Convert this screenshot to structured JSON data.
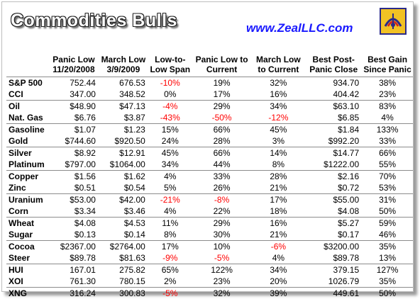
{
  "header": {
    "title": "Commodities Bulls",
    "site": "www.ZealLLC.com"
  },
  "colors": {
    "negative": "#ff0000",
    "site": "#1a1aff",
    "logo_bg": "#f2c224"
  },
  "columns": [
    "Panic Low 11/20/2008",
    "March Low 3/9/2009",
    "Low-to-Low Span",
    "Panic Low to Current",
    "March Low to Current",
    "Best Post-Panic Close",
    "Best Gain Since Panic"
  ],
  "rows": [
    {
      "name": "S&P 500",
      "panic": "752.44",
      "march": "676.53",
      "span": "-10%",
      "p2c": "19%",
      "m2c": "32%",
      "best": "934.70",
      "gain": "38%"
    },
    {
      "name": "CCI",
      "panic": "347.00",
      "march": "348.52",
      "span": "0%",
      "p2c": "17%",
      "m2c": "16%",
      "best": "404.42",
      "gain": "23%"
    },
    {
      "name": "Oil",
      "panic": "$48.90",
      "march": "$47.13",
      "span": "-4%",
      "p2c": "29%",
      "m2c": "34%",
      "best": "$63.10",
      "gain": "83%"
    },
    {
      "name": "Nat. Gas",
      "panic": "$6.76",
      "march": "$3.87",
      "span": "-43%",
      "p2c": "-50%",
      "m2c": "-12%",
      "best": "$6.85",
      "gain": "4%"
    },
    {
      "name": "Gasoline",
      "panic": "$1.07",
      "march": "$1.23",
      "span": "15%",
      "p2c": "66%",
      "m2c": "45%",
      "best": "$1.84",
      "gain": "133%"
    },
    {
      "name": "Gold",
      "panic": "$744.60",
      "march": "$920.50",
      "span": "24%",
      "p2c": "28%",
      "m2c": "3%",
      "best": "$992.20",
      "gain": "33%"
    },
    {
      "name": "Silver",
      "panic": "$8.92",
      "march": "$12.91",
      "span": "45%",
      "p2c": "66%",
      "m2c": "14%",
      "best": "$14.77",
      "gain": "66%"
    },
    {
      "name": "Platinum",
      "panic": "$797.00",
      "march": "$1064.00",
      "span": "34%",
      "p2c": "44%",
      "m2c": "8%",
      "best": "$1222.00",
      "gain": "55%"
    },
    {
      "name": "Copper",
      "panic": "$1.56",
      "march": "$1.62",
      "span": "4%",
      "p2c": "33%",
      "m2c": "28%",
      "best": "$2.16",
      "gain": "70%"
    },
    {
      "name": "Zinc",
      "panic": "$0.51",
      "march": "$0.54",
      "span": "5%",
      "p2c": "26%",
      "m2c": "21%",
      "best": "$0.72",
      "gain": "53%"
    },
    {
      "name": "Uranium",
      "panic": "$53.00",
      "march": "$42.00",
      "span": "-21%",
      "p2c": "-8%",
      "m2c": "17%",
      "best": "$55.00",
      "gain": "31%"
    },
    {
      "name": "Corn",
      "panic": "$3.34",
      "march": "$3.46",
      "span": "4%",
      "p2c": "22%",
      "m2c": "18%",
      "best": "$4.08",
      "gain": "50%"
    },
    {
      "name": "Wheat",
      "panic": "$4.08",
      "march": "$4.53",
      "span": "11%",
      "p2c": "29%",
      "m2c": "16%",
      "best": "$5.27",
      "gain": "59%"
    },
    {
      "name": "Sugar",
      "panic": "$0.13",
      "march": "$0.14",
      "span": "8%",
      "p2c": "30%",
      "m2c": "21%",
      "best": "$0.17",
      "gain": "46%"
    },
    {
      "name": "Cocoa",
      "panic": "$2367.00",
      "march": "$2764.00",
      "span": "17%",
      "p2c": "10%",
      "m2c": "-6%",
      "best": "$3200.00",
      "gain": "35%"
    },
    {
      "name": "Steer",
      "panic": "$89.78",
      "march": "$81.63",
      "span": "-9%",
      "p2c": "-5%",
      "m2c": "4%",
      "best": "$89.78",
      "gain": "13%"
    },
    {
      "name": "HUI",
      "panic": "167.01",
      "march": "275.82",
      "span": "65%",
      "p2c": "122%",
      "m2c": "34%",
      "best": "379.15",
      "gain": "127%"
    },
    {
      "name": "XOI",
      "panic": "761.30",
      "march": "780.15",
      "span": "2%",
      "p2c": "23%",
      "m2c": "20%",
      "best": "1026.79",
      "gain": "35%"
    },
    {
      "name": "XNG",
      "panic": "316.24",
      "march": "300.83",
      "span": "-5%",
      "p2c": "32%",
      "m2c": "39%",
      "best": "449.61",
      "gain": "50%"
    }
  ]
}
